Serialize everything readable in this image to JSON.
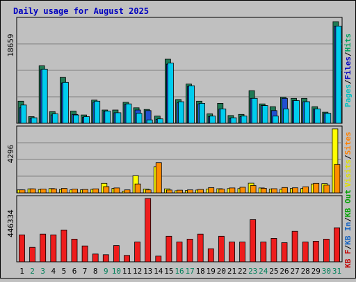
{
  "chart_data": [
    {
      "type": "bar",
      "title": "Daily usage for August 2025",
      "ylabel_top": "18659",
      "side_labels": [
        {
          "text": "Pages",
          "color": "#00c0c0"
        },
        {
          "text": "Files",
          "color": "#0000c0"
        },
        {
          "text": "Hits",
          "color": "#00a060"
        }
      ],
      "ylim": [
        0,
        18659
      ],
      "categories": [
        "1",
        "2",
        "3",
        "4",
        "5",
        "6",
        "7",
        "8",
        "9",
        "10",
        "11",
        "12",
        "13",
        "14",
        "15",
        "16",
        "17",
        "18",
        "19",
        "20",
        "21",
        "22",
        "23",
        "24",
        "25",
        "26",
        "27",
        "28",
        "29",
        "30",
        "31"
      ],
      "series": [
        {
          "name": "Hits",
          "color": "#1f7a55",
          "values": [
            4000,
            1200,
            10400,
            2100,
            8300,
            2200,
            1500,
            4200,
            2400,
            2400,
            3800,
            2800,
            2500,
            1300,
            11600,
            4300,
            7100,
            4000,
            1700,
            3600,
            1400,
            1600,
            5900,
            3500,
            3000,
            4700,
            4500,
            4500,
            3000,
            2000,
            18400
          ]
        },
        {
          "name": "Files",
          "color": "#2050d0",
          "values": [
            2800,
            900,
            9700,
            1500,
            7300,
            1600,
            1100,
            3800,
            2100,
            1900,
            3400,
            2400,
            2300,
            700,
            10700,
            3700,
            6700,
            3500,
            1200,
            2600,
            900,
            1200,
            4500,
            3200,
            2300,
            4500,
            4100,
            3900,
            2600,
            1800,
            17600
          ]
        },
        {
          "name": "Pages",
          "color": "#00ccee",
          "values": [
            3300,
            1000,
            9800,
            1700,
            7400,
            1500,
            1200,
            4000,
            2200,
            1900,
            3500,
            1800,
            600,
            800,
            10900,
            3900,
            6800,
            3600,
            1300,
            2600,
            1000,
            1300,
            4500,
            3200,
            1300,
            2600,
            4100,
            3900,
            2600,
            1800,
            17600
          ]
        }
      ]
    },
    {
      "type": "bar",
      "ylabel_top": "4296",
      "side_labels": [
        {
          "text": "Visits",
          "color": "#e0e000"
        },
        {
          "text": "Sites",
          "color": "#ff8000"
        }
      ],
      "ylim": [
        0,
        4296
      ],
      "categories": [
        "1",
        "2",
        "3",
        "4",
        "5",
        "6",
        "7",
        "8",
        "9",
        "10",
        "11",
        "12",
        "13",
        "14",
        "15",
        "16",
        "17",
        "18",
        "19",
        "20",
        "21",
        "22",
        "23",
        "24",
        "25",
        "26",
        "27",
        "28",
        "29",
        "30",
        "31"
      ],
      "series": [
        {
          "name": "Visits",
          "color": "#ffff00",
          "values": [
            200,
            270,
            230,
            290,
            230,
            200,
            210,
            240,
            640,
            300,
            120,
            1150,
            260,
            1740,
            270,
            140,
            160,
            190,
            260,
            280,
            290,
            290,
            650,
            330,
            260,
            240,
            300,
            300,
            600,
            620,
            4296
          ]
        },
        {
          "name": "Sites",
          "color": "#ff8c00",
          "values": [
            200,
            270,
            260,
            270,
            300,
            250,
            230,
            270,
            420,
            330,
            200,
            600,
            200,
            2020,
            190,
            180,
            200,
            230,
            350,
            250,
            330,
            380,
            490,
            310,
            280,
            360,
            340,
            410,
            640,
            520,
            1900
          ]
        }
      ]
    },
    {
      "type": "bar",
      "ylabel_top": "446334",
      "side_labels": [
        {
          "text": "KB F",
          "color": "#c00000"
        },
        {
          "text": "KB In",
          "color": "#1060c0"
        },
        {
          "text": "KB Out",
          "color": "#00a000"
        }
      ],
      "ylim": [
        0,
        446334
      ],
      "categories": [
        "1",
        "2",
        "3",
        "4",
        "5",
        "6",
        "7",
        "8",
        "9",
        "10",
        "11",
        "12",
        "13",
        "14",
        "15",
        "16",
        "17",
        "18",
        "19",
        "20",
        "21",
        "22",
        "23",
        "24",
        "25",
        "26",
        "27",
        "28",
        "29",
        "30",
        "31"
      ],
      "series": [
        {
          "name": "KB F",
          "color": "#ee1c1c",
          "values": [
            190000,
            102000,
            195000,
            190000,
            224000,
            160000,
            112000,
            55000,
            50000,
            115000,
            45000,
            140000,
            446334,
            40000,
            180000,
            140000,
            160000,
            195000,
            92000,
            180000,
            140000,
            140000,
            297000,
            140000,
            165000,
            135000,
            215000,
            140000,
            145000,
            160000,
            240000
          ]
        }
      ]
    }
  ],
  "x_label_colors": {
    "weekday": "#000000",
    "weekend": "#00805a",
    "weekend_days": [
      "2",
      "3",
      "9",
      "10",
      "16",
      "17",
      "23",
      "24",
      "30",
      "31"
    ]
  }
}
